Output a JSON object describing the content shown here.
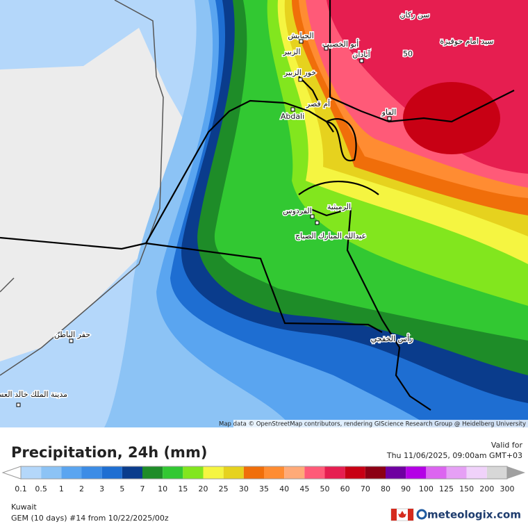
{
  "map": {
    "places": [
      "سن ركان",
      "سيد امام حوفيزة",
      "الجبايش",
      "أبو الخصيب",
      "الزبير",
      "آبادان",
      "50",
      "خور الزبير",
      "أم قصر",
      "Abdali",
      "الفاو",
      "الرميثية",
      "الفردوس",
      "عبدالله المبارك الصباح",
      "رأس الخفجي",
      "حفر الباطن",
      "مدينة الملك خالد العسكرية"
    ],
    "attribution": "Map data © OpenStreetMap contributors, rendering GIScience Research Group @ Heidelberg University"
  },
  "panel": {
    "title": "Precipitation, 24h (mm)",
    "valid_label": "Valid for",
    "valid_time": "Thu 11/06/2025, 09:00am GMT+03",
    "region": "Kuwait",
    "model": "GEM (10 days) #14 from  10/22/2025/00z",
    "brand": "meteologix.com"
  },
  "legend": {
    "labels": [
      0.1,
      0.5,
      1,
      2,
      3,
      5,
      7,
      10,
      15,
      20,
      25,
      30,
      35,
      40,
      45,
      50,
      60,
      70,
      80,
      90,
      100,
      125,
      150,
      200,
      300
    ],
    "below_color": "#ffffff",
    "colors": [
      "#b4d7fa",
      "#8cc3f5",
      "#5aa5f0",
      "#3c8ce6",
      "#1e6ed2",
      "#0a3c8c",
      "#1e8c28",
      "#32c832",
      "#82e61e",
      "#f5f541",
      "#e6d21e",
      "#f06e0a",
      "#ff8c32",
      "#ffaa78",
      "#ff5a78",
      "#e61e50",
      "#c80014",
      "#8c0014",
      "#6e00a0",
      "#b400e6",
      "#dc64f0",
      "#e6a0f5",
      "#f0d2fa",
      "#d7d7d7"
    ],
    "above_color": "#a0a0a0"
  }
}
